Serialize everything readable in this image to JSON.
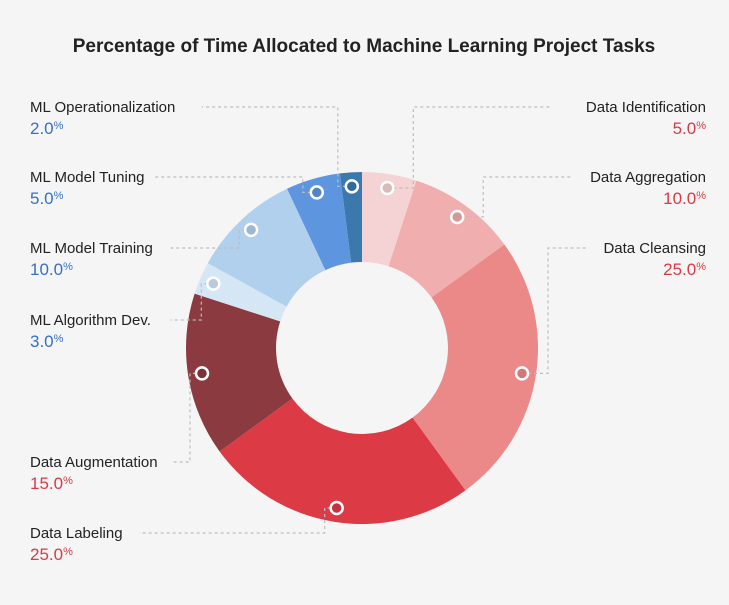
{
  "chart_data": {
    "type": "pie",
    "style": "donut",
    "title": "Percentage of Time Allocated to Machine Learning Project Tasks",
    "unit": "%",
    "slices": [
      {
        "label": "Data Identification",
        "value": 5.0,
        "display": "5.0",
        "color": "#f5d3d4",
        "side": "right"
      },
      {
        "label": "Data Aggregation",
        "value": 10.0,
        "display": "10.0",
        "color": "#f0aeae",
        "side": "right"
      },
      {
        "label": "Data Cleansing",
        "value": 25.0,
        "display": "25.0",
        "color": "#eb8888",
        "side": "right"
      },
      {
        "label": "Data Labeling",
        "value": 25.0,
        "display": "25.0",
        "color": "#dc3b45",
        "side": "left"
      },
      {
        "label": "Data Augmentation",
        "value": 15.0,
        "display": "15.0",
        "color": "#8b3a40",
        "side": "left"
      },
      {
        "label": "ML Algorithm Dev.",
        "value": 3.0,
        "display": "3.0",
        "color": "#d5e6f5",
        "side": "left"
      },
      {
        "label": "ML Model Training",
        "value": 10.0,
        "display": "10.0",
        "color": "#b0d0ee",
        "side": "left"
      },
      {
        "label": "ML Model Tuning",
        "value": 5.0,
        "display": "5.0",
        "color": "#5d96df",
        "side": "left"
      },
      {
        "label": "ML Operationalization",
        "value": 2.0,
        "display": "2.0",
        "color": "#3b78ac",
        "side": "left"
      }
    ],
    "value_colors": {
      "data": "#d93a44",
      "ml": "#3570c4"
    },
    "legend": "none"
  }
}
